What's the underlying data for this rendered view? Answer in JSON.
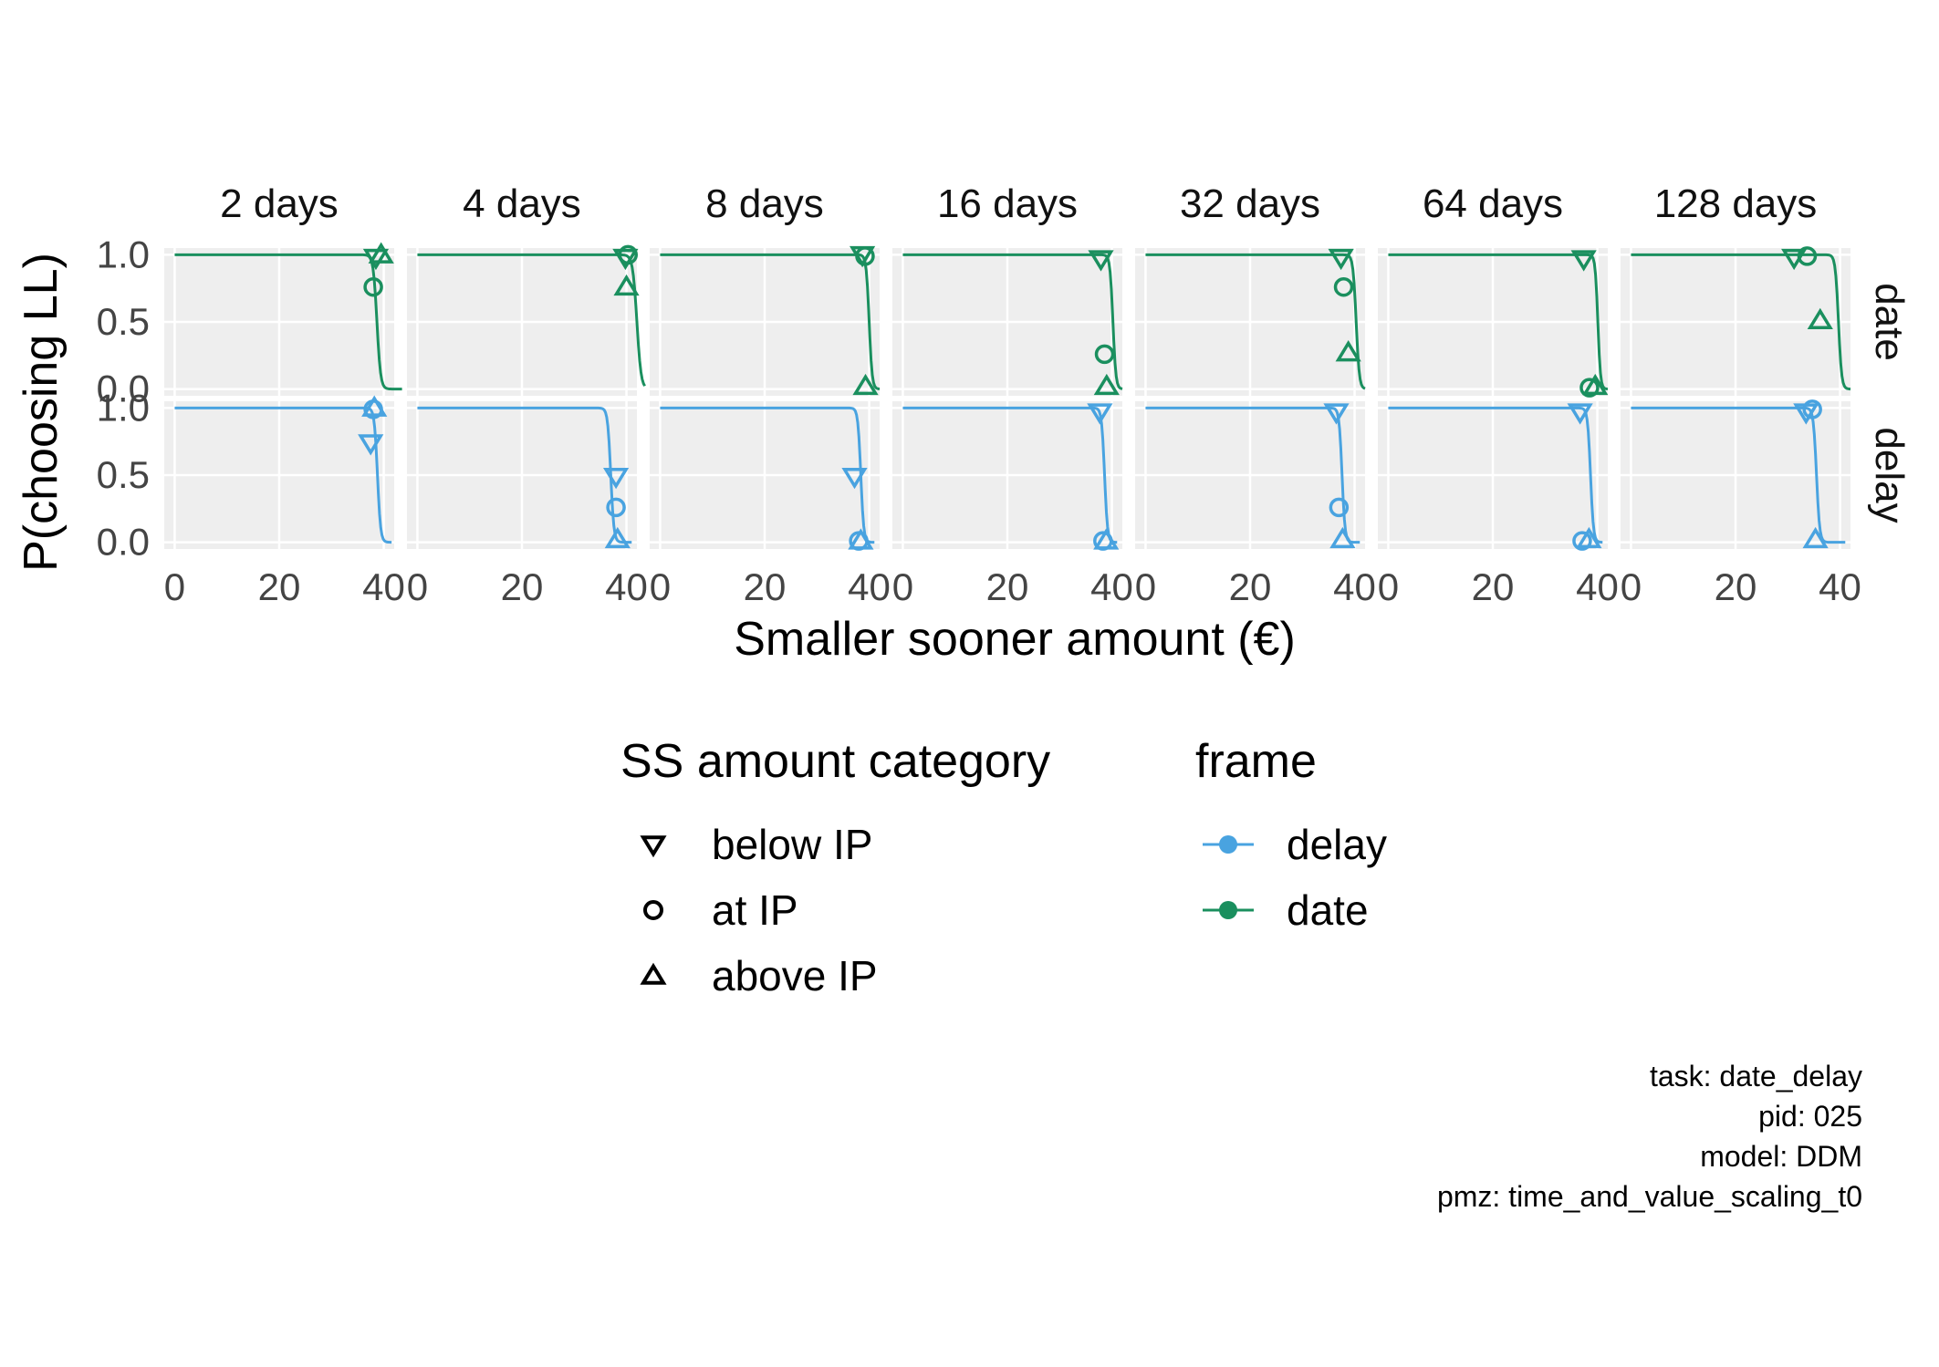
{
  "chart_data": {
    "type": "line",
    "xlabel": "Smaller sooner amount (€)",
    "ylabel": "P(choosing LL)",
    "xlim": [
      -2,
      42
    ],
    "ylim": [
      -0.05,
      1.05
    ],
    "x_ticks": [
      0,
      20,
      40
    ],
    "x_tick_labels": [
      "0",
      "20",
      "40"
    ],
    "y_ticks": [
      0,
      0.5,
      1
    ],
    "y_tick_labels": [
      "0.0",
      "0.5",
      "1.0"
    ],
    "grid": true,
    "panel_background": "#eeeeee",
    "columns": [
      "2 days",
      "4 days",
      "8 days",
      "16 days",
      "32 days",
      "64 days",
      "128 days"
    ],
    "rows": [
      {
        "label": "date",
        "color": "#1a8f5e",
        "curves": [
          {
            "midpoint": 38.7,
            "scale": 0.35,
            "x_end": 43.5
          },
          {
            "midpoint": 42.0,
            "scale": 0.4,
            "x_end": 43.5
          },
          {
            "midpoint": 40.0,
            "scale": 0.28,
            "x_end": 42.0
          },
          {
            "midpoint": 40.2,
            "scale": 0.28,
            "x_end": 42.0
          },
          {
            "midpoint": 40.3,
            "scale": 0.3,
            "x_end": 42.0
          },
          {
            "midpoint": 40.1,
            "scale": 0.25,
            "x_end": 42.0
          },
          {
            "midpoint": 39.7,
            "scale": 0.3,
            "x_end": 42.0
          }
        ],
        "points": [
          [
            {
              "x": 38.5,
              "y": 0.98,
              "shape": "below IP"
            },
            {
              "x": 38.0,
              "y": 0.76,
              "shape": "at IP"
            },
            {
              "x": 39.5,
              "y": 1.0,
              "shape": "above IP"
            }
          ],
          [
            {
              "x": 39.8,
              "y": 0.98,
              "shape": "below IP"
            },
            {
              "x": 40.3,
              "y": 1.0,
              "shape": "at IP"
            },
            {
              "x": 40.0,
              "y": 0.76,
              "shape": "above IP"
            }
          ],
          [
            {
              "x": 38.7,
              "y": 1.0,
              "shape": "below IP"
            },
            {
              "x": 39.2,
              "y": 0.99,
              "shape": "at IP"
            },
            {
              "x": 39.3,
              "y": 0.02,
              "shape": "above IP"
            }
          ],
          [
            {
              "x": 37.9,
              "y": 0.97,
              "shape": "below IP"
            },
            {
              "x": 38.6,
              "y": 0.26,
              "shape": "at IP"
            },
            {
              "x": 39.0,
              "y": 0.02,
              "shape": "above IP"
            }
          ],
          [
            {
              "x": 37.4,
              "y": 0.98,
              "shape": "below IP"
            },
            {
              "x": 37.9,
              "y": 0.76,
              "shape": "at IP"
            },
            {
              "x": 38.8,
              "y": 0.27,
              "shape": "above IP"
            }
          ],
          [
            {
              "x": 37.4,
              "y": 0.97,
              "shape": "below IP"
            },
            {
              "x": 38.5,
              "y": 0.01,
              "shape": "at IP"
            },
            {
              "x": 39.6,
              "y": 0.02,
              "shape": "above IP"
            }
          ],
          [
            {
              "x": 31.2,
              "y": 0.98,
              "shape": "below IP"
            },
            {
              "x": 33.7,
              "y": 0.99,
              "shape": "at IP"
            },
            {
              "x": 36.2,
              "y": 0.51,
              "shape": "above IP"
            }
          ]
        ]
      },
      {
        "label": "delay",
        "color": "#49a3e0",
        "curves": [
          {
            "midpoint": 38.8,
            "scale": 0.3,
            "x_end": 41.5
          },
          {
            "midpoint": 37.0,
            "scale": 0.3,
            "x_end": 41.0
          },
          {
            "midpoint": 38.4,
            "scale": 0.28,
            "x_end": 41.0
          },
          {
            "midpoint": 38.6,
            "scale": 0.28,
            "x_end": 41.0
          },
          {
            "midpoint": 37.6,
            "scale": 0.28,
            "x_end": 41.0
          },
          {
            "midpoint": 38.7,
            "scale": 0.28,
            "x_end": 41.0
          },
          {
            "midpoint": 35.5,
            "scale": 0.3,
            "x_end": 41.0
          }
        ],
        "points": [
          [
            {
              "x": 37.5,
              "y": 0.74,
              "shape": "below IP"
            },
            {
              "x": 38.0,
              "y": 0.99,
              "shape": "at IP"
            },
            {
              "x": 38.2,
              "y": 1.0,
              "shape": "above IP"
            }
          ],
          [
            {
              "x": 38.0,
              "y": 0.49,
              "shape": "below IP"
            },
            {
              "x": 38.0,
              "y": 0.26,
              "shape": "at IP"
            },
            {
              "x": 38.3,
              "y": 0.02,
              "shape": "above IP"
            }
          ],
          [
            {
              "x": 37.2,
              "y": 0.49,
              "shape": "below IP"
            },
            {
              "x": 38.0,
              "y": 0.01,
              "shape": "at IP"
            },
            {
              "x": 38.4,
              "y": 0.01,
              "shape": "above IP"
            }
          ],
          [
            {
              "x": 37.7,
              "y": 0.97,
              "shape": "below IP"
            },
            {
              "x": 38.3,
              "y": 0.01,
              "shape": "at IP"
            },
            {
              "x": 38.9,
              "y": 0.01,
              "shape": "above IP"
            }
          ],
          [
            {
              "x": 36.5,
              "y": 0.97,
              "shape": "below IP"
            },
            {
              "x": 37.0,
              "y": 0.26,
              "shape": "at IP"
            },
            {
              "x": 37.7,
              "y": 0.02,
              "shape": "above IP"
            }
          ],
          [
            {
              "x": 36.7,
              "y": 0.97,
              "shape": "below IP"
            },
            {
              "x": 37.1,
              "y": 0.01,
              "shape": "at IP"
            },
            {
              "x": 38.4,
              "y": 0.02,
              "shape": "above IP"
            }
          ],
          [
            {
              "x": 33.5,
              "y": 0.97,
              "shape": "below IP"
            },
            {
              "x": 34.7,
              "y": 0.99,
              "shape": "at IP"
            },
            {
              "x": 35.3,
              "y": 0.02,
              "shape": "above IP"
            }
          ]
        ]
      }
    ]
  },
  "legend": {
    "shape_title": "SS amount category",
    "shapes": [
      {
        "label": "below IP",
        "shape": "below IP"
      },
      {
        "label": "at IP",
        "shape": "at IP"
      },
      {
        "label": "above IP",
        "shape": "above IP"
      }
    ],
    "frame_title": "frame",
    "frames": [
      {
        "label": "delay",
        "color": "#49a3e0"
      },
      {
        "label": "date",
        "color": "#1a8f5e"
      }
    ]
  },
  "caption": {
    "task": "task: date_delay",
    "pid": "pid: 025",
    "model": "model: DDM",
    "pmz": "pmz: time_and_value_scaling_t0"
  }
}
